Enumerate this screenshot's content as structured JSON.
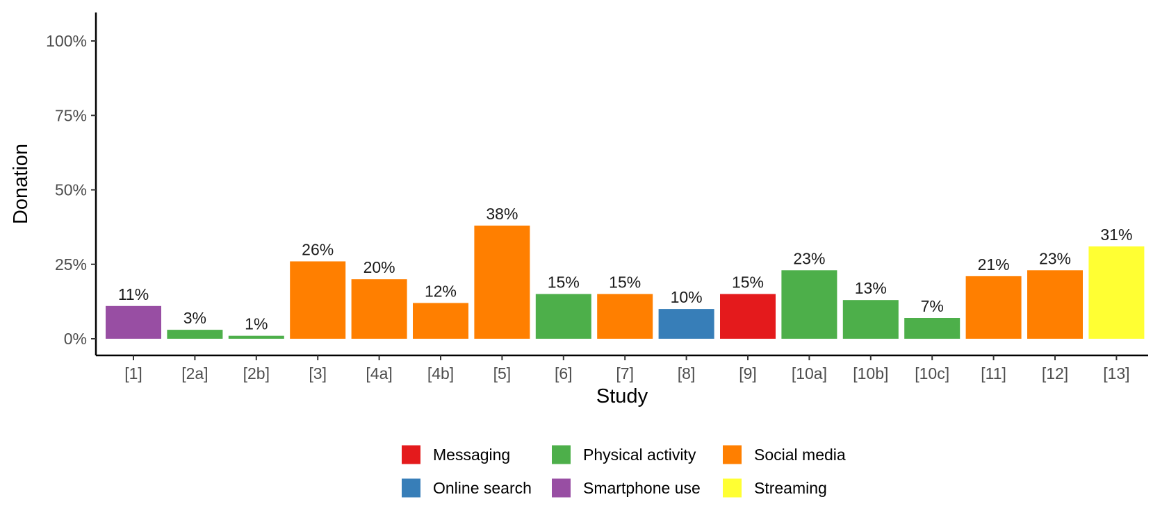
{
  "chart_data": {
    "type": "bar",
    "xlabel": "Study",
    "ylabel": "Donation",
    "ylim": [
      0,
      1.0
    ],
    "y_ticks": [
      0,
      0.25,
      0.5,
      0.75,
      1.0
    ],
    "y_tick_labels": [
      "0%",
      "25%",
      "50%",
      "75%",
      "100%"
    ],
    "grid": false,
    "legend_position": "bottom",
    "categories": [
      "[1]",
      "[2a]",
      "[2b]",
      "[3]",
      "[4a]",
      "[4b]",
      "[5]",
      "[6]",
      "[7]",
      "[8]",
      "[9]",
      "[10a]",
      "[10b]",
      "[10c]",
      "[11]",
      "[12]",
      "[13]"
    ],
    "values": [
      0.11,
      0.03,
      0.01,
      0.26,
      0.2,
      0.12,
      0.38,
      0.15,
      0.15,
      0.1,
      0.15,
      0.23,
      0.13,
      0.07,
      0.21,
      0.23,
      0.31
    ],
    "value_labels": [
      "11%",
      "3%",
      "1%",
      "26%",
      "20%",
      "12%",
      "38%",
      "15%",
      "15%",
      "10%",
      "15%",
      "23%",
      "13%",
      "7%",
      "21%",
      "23%",
      "31%"
    ],
    "groups": [
      "Smartphone use",
      "Physical activity",
      "Physical activity",
      "Social media",
      "Social media",
      "Social media",
      "Social media",
      "Physical activity",
      "Social media",
      "Online search",
      "Messaging",
      "Physical activity",
      "Physical activity",
      "Physical activity",
      "Social media",
      "Social media",
      "Streaming"
    ],
    "legend": [
      {
        "name": "Messaging",
        "color": "#e41a1c"
      },
      {
        "name": "Online search",
        "color": "#377eb8"
      },
      {
        "name": "Physical activity",
        "color": "#4daf4a"
      },
      {
        "name": "Smartphone use",
        "color": "#984ea3"
      },
      {
        "name": "Social media",
        "color": "#ff7f00"
      },
      {
        "name": "Streaming",
        "color": "#ffff33"
      }
    ]
  }
}
